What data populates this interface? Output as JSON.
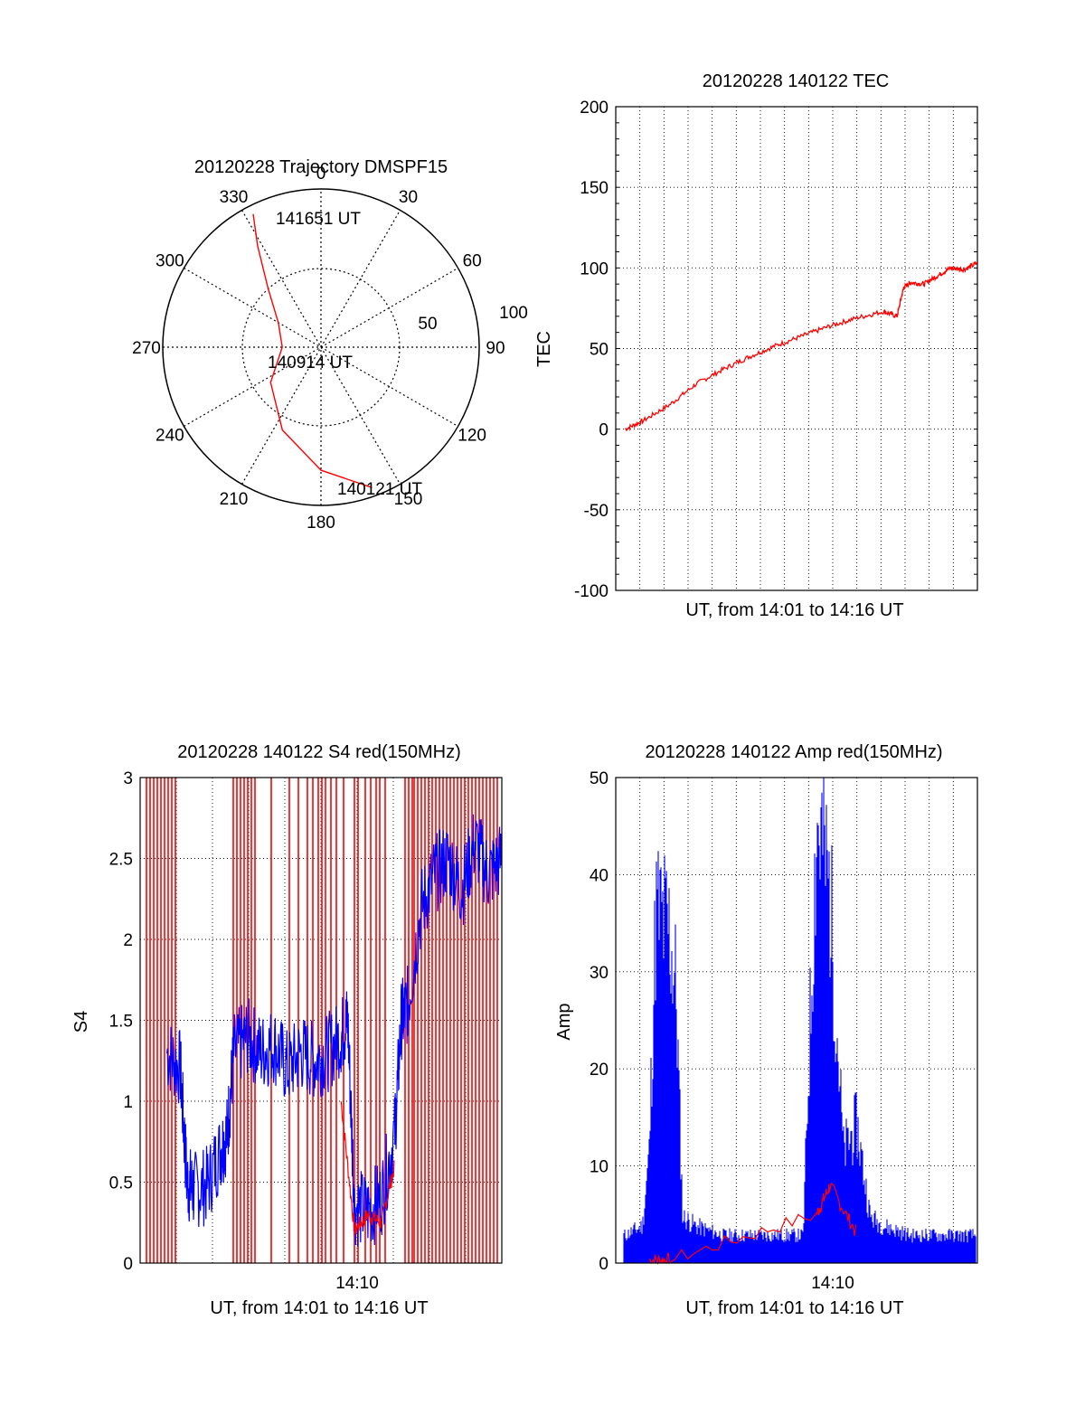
{
  "colors": {
    "red": "#ff0000",
    "blue": "#0000ff",
    "axis": "#000000",
    "grid": "#000000"
  },
  "chart_data": [
    {
      "id": "trajectory",
      "type": "polar",
      "title": "20120228 Trajectory DMSPF15",
      "angle_labels": [
        "0",
        "30",
        "60",
        "90",
        "120",
        "150",
        "180",
        "210",
        "240",
        "270",
        "300",
        "330"
      ],
      "radius_labels": [
        "50",
        "100"
      ],
      "series": [
        {
          "color": "red",
          "points": [
            {
              "az": 160,
              "el": 5
            },
            {
              "az": 180,
              "el": 20
            },
            {
              "az": 205,
              "el": 38
            },
            {
              "az": 235,
              "el": 55
            },
            {
              "az": 270,
              "el": 68
            },
            {
              "az": 300,
              "el": 62
            },
            {
              "az": 318,
              "el": 45
            },
            {
              "az": 328,
              "el": 22
            },
            {
              "az": 333,
              "el": 5
            }
          ]
        }
      ],
      "annotations": [
        "141651 UT",
        "140914 UT",
        "140121 UT"
      ],
      "grid": true
    },
    {
      "id": "tec",
      "type": "line",
      "title": "20120228 140122 TEC",
      "xlabel": "UT, from 14:01 to 14:16 UT",
      "ylabel": "TEC",
      "ylim": [
        -100,
        200
      ],
      "yticks": [
        "-100",
        "-50",
        "0",
        "50",
        "100",
        "150",
        "200"
      ],
      "xlim": [
        14.0,
        14.27
      ],
      "grid": true,
      "series": [
        {
          "color": "red",
          "x": [
            14.007,
            14.02,
            14.04,
            14.06,
            14.08,
            14.1,
            14.12,
            14.14,
            14.16,
            14.18,
            14.2,
            14.21,
            14.215,
            14.22,
            14.23,
            14.24,
            14.25,
            14.26,
            14.27
          ],
          "y": [
            0,
            5,
            15,
            28,
            37,
            45,
            52,
            58,
            64,
            69,
            73,
            70,
            88,
            91,
            90,
            95,
            100,
            99,
            103
          ]
        }
      ]
    },
    {
      "id": "s4",
      "type": "line",
      "title": "20120228 140122 S4 red(150MHz)",
      "xlabel": "UT, from 14:01 to 14:16 UT",
      "ylabel": "S4",
      "ylim": [
        0,
        3
      ],
      "yticks": [
        "0",
        "0.5",
        "1",
        "1.5",
        "2",
        "2.5",
        "3"
      ],
      "xtick_labels": [
        "14:10"
      ],
      "grid": true,
      "series": [
        {
          "color": "blue",
          "x": [
            14.02,
            14.03,
            14.035,
            14.04,
            14.05,
            14.06,
            14.065,
            14.07,
            14.08,
            14.09,
            14.1,
            14.11,
            14.12,
            14.13,
            14.14,
            14.15,
            14.155,
            14.16,
            14.17,
            14.18,
            14.19,
            14.195,
            14.2,
            14.21,
            14.22,
            14.23,
            14.24,
            14.25,
            14.26,
            14.27
          ],
          "y": [
            1.3,
            1.2,
            0.5,
            0.45,
            0.48,
            0.7,
            0.8,
            1.3,
            1.4,
            1.3,
            1.35,
            1.2,
            1.3,
            1.25,
            1.3,
            1.4,
            1.5,
            0.35,
            0.32,
            0.4,
            0.8,
            1.5,
            1.6,
            2.2,
            2.4,
            2.5,
            2.3,
            2.6,
            2.4,
            2.5
          ]
        },
        {
          "color": "red",
          "x": [
            14.15,
            14.16,
            14.17,
            14.18,
            14.19
          ],
          "y": [
            1.0,
            0.2,
            0.3,
            0.25,
            0.6
          ]
        }
      ]
    },
    {
      "id": "amp",
      "type": "line",
      "title": "20120228 140122 Amp red(150MHz)",
      "xlabel": "UT, from 14:01 to 14:16 UT",
      "ylabel": "Amp",
      "ylim": [
        0,
        50
      ],
      "yticks": [
        "0",
        "10",
        "20",
        "30",
        "40",
        "50"
      ],
      "xtick_labels": [
        "14:10"
      ],
      "grid": true,
      "series": [
        {
          "color": "blue",
          "x": [
            14.007,
            14.02,
            14.025,
            14.03,
            14.04,
            14.045,
            14.05,
            14.06,
            14.08,
            14.1,
            14.12,
            14.14,
            14.15,
            14.155,
            14.16,
            14.17,
            14.18,
            14.19,
            14.2,
            14.22,
            14.24,
            14.27
          ],
          "y": [
            3,
            4,
            12,
            38,
            36,
            30,
            5,
            4,
            3,
            3,
            3,
            3,
            48,
            45,
            40,
            12,
            15,
            5,
            4,
            3,
            3,
            3
          ]
        },
        {
          "color": "red",
          "x": [
            14.025,
            14.04,
            14.15,
            14.16,
            14.18
          ],
          "y": [
            0.3,
            0.3,
            5,
            8,
            3
          ]
        }
      ]
    }
  ]
}
